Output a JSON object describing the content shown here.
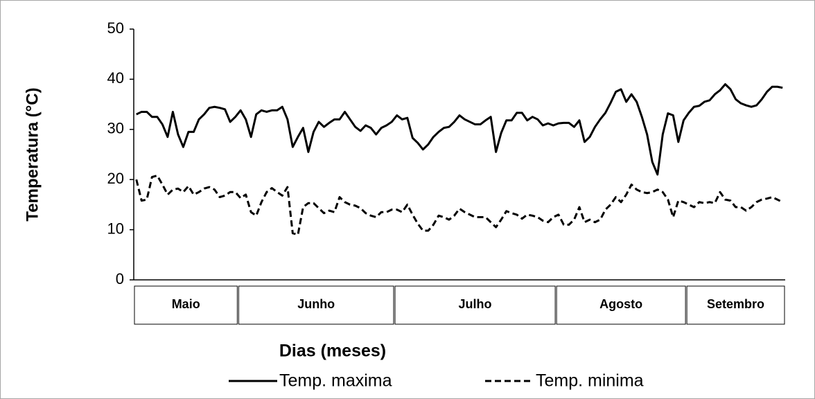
{
  "chart_data": {
    "type": "line",
    "ylabel": "Temperatura (°C)",
    "xlabel": "Dias (meses)",
    "categories": [
      "Maio",
      "Junho",
      "Julho",
      "Agosto",
      "Setembro"
    ],
    "ylim": [
      0,
      50
    ],
    "yticks": [
      0,
      10,
      20,
      30,
      40,
      50
    ],
    "grid": false,
    "legend": "bottom",
    "series": [
      {
        "name": "Temp. maxima",
        "color": "#000000",
        "dashed": false,
        "values": [
          [
            33,
            33.5,
            33.5,
            32.5,
            32.5,
            31,
            28.5,
            33.5,
            29,
            26.5,
            29.5,
            29.5,
            32,
            33,
            34.3,
            34.5,
            34.3,
            34,
            31.5,
            32.5
          ],
          [
            33.8,
            32,
            28.5,
            33,
            33.8,
            33.5,
            33.8,
            33.8,
            34.5,
            32,
            26.5,
            28.5,
            30.3,
            25.5,
            29.5,
            31.5,
            30.5,
            31.3,
            32,
            32,
            33.5,
            32,
            30.5,
            29.7,
            30.8,
            30.3,
            29,
            30.3,
            30.8,
            31.5
          ],
          [
            32.8,
            32,
            32.3,
            28.3,
            27.3,
            26,
            27,
            28.5,
            29.5,
            30.3,
            30.5,
            31.5,
            32.8,
            32,
            31.5,
            31,
            31,
            31.8,
            32.5,
            25.5,
            29.3,
            31.8,
            31.8,
            33.3,
            33.3,
            31.8,
            32.5,
            32,
            30.8,
            31.2,
            30.8
          ],
          [
            31.2,
            31.3,
            31.3,
            30.5,
            31.8,
            27.5,
            28.5,
            30.5,
            32,
            33.3,
            35.3,
            37.5,
            38,
            35.5,
            37,
            35.5,
            32.5,
            29,
            23.5,
            21,
            29,
            33.2,
            32.8,
            27.5,
            31.8
          ],
          [
            33.3,
            34.5,
            34.7,
            35.5,
            35.8,
            37,
            37.8,
            39,
            38,
            36,
            35.2,
            34.8,
            34.5,
            34.8,
            36,
            37.5,
            38.5,
            38.5,
            38.3
          ]
        ]
      },
      {
        "name": "Temp. minima",
        "color": "#000000",
        "dashed": true,
        "values": [
          [
            20,
            15.8,
            16,
            20.5,
            20.8,
            19,
            17,
            18,
            18.2,
            17.5,
            18.7,
            17,
            17.5,
            18.2,
            18.5,
            18,
            16.5,
            16.8,
            17.5,
            17.5
          ],
          [
            16.3,
            17,
            13.5,
            12.8,
            15.5,
            17.5,
            18.3,
            17.5,
            16.8,
            18.5,
            9.3,
            9,
            14.5,
            15.3,
            15.3,
            14.3,
            13.3,
            13.8,
            13.5,
            16.5,
            15.5,
            15,
            14.8,
            14.3,
            13.3,
            12.8,
            12.5,
            13.5,
            13.5,
            14
          ],
          [
            14,
            13.5,
            15,
            13,
            11.2,
            9.8,
            9.8,
            11,
            12.8,
            12.5,
            12,
            12.8,
            14.2,
            13.5,
            13,
            12.5,
            12.5,
            12.5,
            11.5,
            10.5,
            12,
            13.7,
            13.3,
            13,
            12.2,
            13,
            12.8,
            12.5,
            11.8,
            11.5,
            12.5
          ],
          [
            13,
            11,
            11,
            12,
            14.5,
            11.5,
            12,
            11.5,
            12,
            14,
            15,
            16.5,
            15.5,
            17,
            19,
            18,
            17.5,
            17.3,
            17.5,
            18,
            17.5,
            16,
            12.5,
            15.8,
            15.5
          ],
          [
            15,
            14.5,
            15.5,
            15.3,
            15.5,
            15.3,
            17.5,
            16,
            15.8,
            14.5,
            14.5,
            13.8,
            14.5,
            15.5,
            16,
            16.2,
            16.5,
            16,
            15.5
          ]
        ]
      }
    ]
  }
}
